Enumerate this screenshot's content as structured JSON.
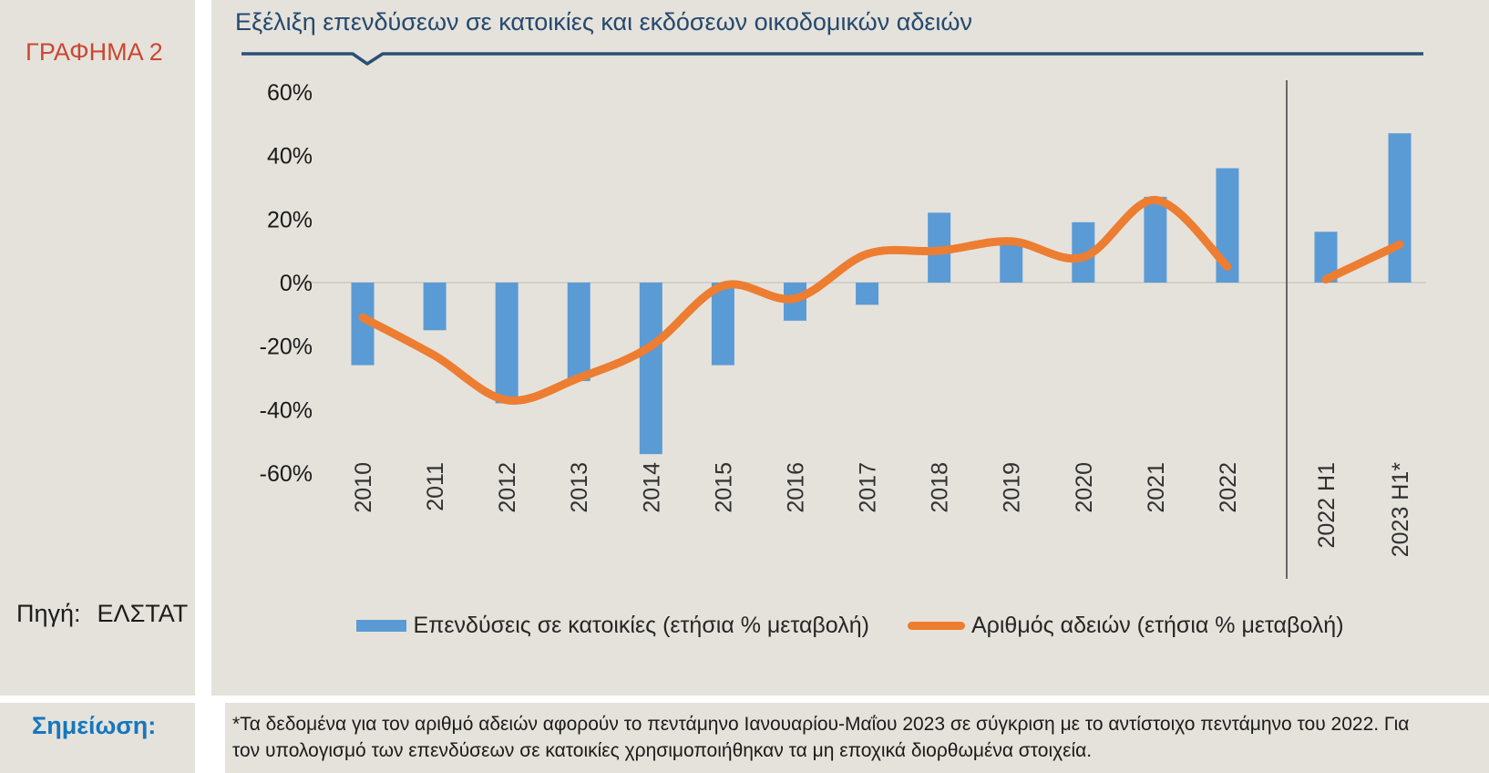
{
  "sidebar": {
    "figure_label": "ΓΡΑΦΗΜΑ 2",
    "source_label": "Πηγή:",
    "source_value": "ΕΛΣΤΑΤ"
  },
  "note": {
    "label": "Σημείωση:",
    "text": "*Τα δεδομένα για τον αριθμό αδειών αφορούν το πεντάμηνο Ιανουαρίου-Μαΐου 2023 σε σύγκριση με το αντίστοιχο πεντάμηνο του 2022. Για τον υπολογισμό των επενδύσεων σε κατοικίες χρησιμοποιήθηκαν τα μη εποχικά διορθωμένα στοιχεία."
  },
  "chart_data": {
    "type": "bar",
    "title": "Εξέλιξη επενδύσεων σε κατοικίες και εκδόσεων οικοδομικών αδειών",
    "categories": [
      "2010",
      "2011",
      "2012",
      "2013",
      "2014",
      "2015",
      "2016",
      "2017",
      "2018",
      "2019",
      "2020",
      "2021",
      "2022",
      "2022 H1",
      "2023 H1*"
    ],
    "series": [
      {
        "name": "Επενδύσεις σε κατοικίες (ετήσια % μεταβολή)",
        "type": "bar",
        "color": "#5b9bd5",
        "values": [
          -26,
          -15,
          -38,
          -31,
          -54,
          -26,
          -12,
          -7,
          22,
          13,
          19,
          27,
          36,
          16,
          47
        ]
      },
      {
        "name": "Αριθμός αδειών (ετήσια % μεταβολή)",
        "type": "line",
        "color": "#ed7d31",
        "values": [
          -11,
          -23,
          -37,
          -30,
          -20,
          -1,
          -5,
          9,
          10,
          13,
          8,
          26,
          5,
          1,
          12
        ]
      }
    ],
    "separator_after_index": 12,
    "y_ticks": [
      60,
      40,
      20,
      0,
      -20,
      -40,
      -60
    ],
    "y_tick_suffix": "%",
    "ylim": [
      -60,
      65
    ],
    "grid": "zero-line-only",
    "legend_position": "bottom",
    "note_marker": "*",
    "unit": "annual % change"
  }
}
